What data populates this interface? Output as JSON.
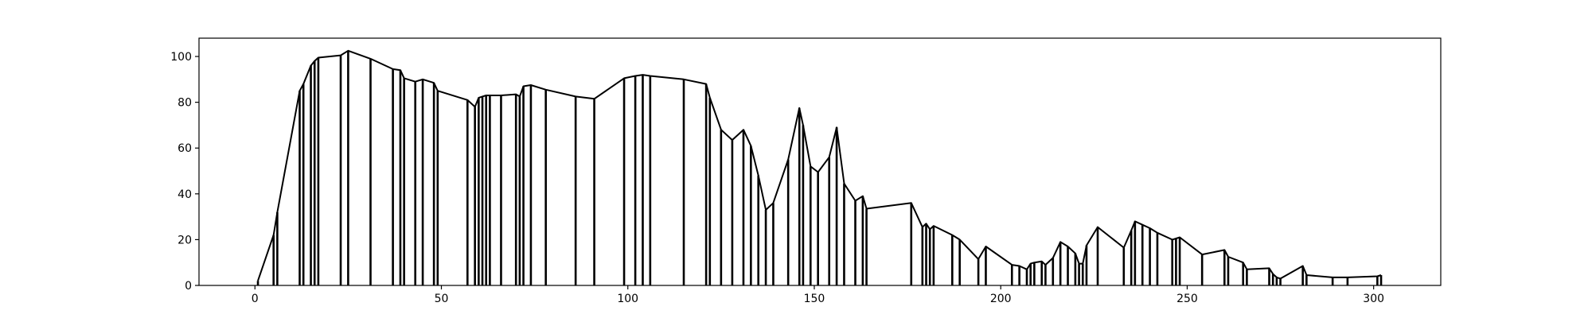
{
  "chart_data": {
    "type": "line",
    "title": "",
    "xlabel": "",
    "ylabel": "",
    "xlim": [
      -15,
      318
    ],
    "ylim": [
      0,
      108
    ],
    "x_ticks": [
      0,
      50,
      100,
      150,
      200,
      250,
      300
    ],
    "y_ticks": [
      0,
      20,
      40,
      60,
      80,
      100
    ],
    "grid": false,
    "legend": "none",
    "colors": {
      "line": "#000000",
      "frame": "#000000",
      "background": "#ffffff"
    },
    "series": [
      {
        "style": "line-with-vertical-drops",
        "x": [
          0.8,
          5,
          6,
          12,
          13,
          15,
          16,
          17,
          23,
          25,
          31,
          37,
          39,
          40,
          43,
          45,
          48,
          49,
          57,
          59,
          60,
          61,
          62,
          63,
          66,
          70,
          71,
          72,
          74,
          78,
          86,
          91,
          99,
          102,
          104,
          106,
          115,
          121,
          122,
          125,
          128,
          131,
          133,
          135,
          137,
          139,
          143,
          146,
          147,
          149,
          151,
          154,
          156,
          158,
          161,
          163,
          164,
          176,
          179,
          180,
          181,
          182,
          187,
          189,
          194,
          196,
          203,
          205,
          207,
          208,
          209,
          211,
          212,
          214,
          216,
          218,
          220,
          221,
          222,
          223,
          226,
          233,
          235,
          236,
          238,
          240,
          242,
          246,
          247,
          248,
          254,
          260,
          261,
          265,
          266,
          272,
          273,
          274,
          275,
          281,
          282,
          289,
          293,
          301,
          302
        ],
        "y": [
          2,
          22,
          32,
          85,
          88,
          96,
          98,
          99.5,
          100.5,
          102.5,
          99,
          94.5,
          94,
          90.5,
          89,
          90,
          88.5,
          85,
          81,
          78,
          82,
          82.5,
          83,
          83,
          83,
          83.5,
          82.5,
          87,
          87.5,
          85.5,
          82.5,
          81.5,
          90.5,
          91.5,
          92,
          91.5,
          90,
          88,
          82,
          68,
          63.5,
          68,
          61,
          48,
          33,
          36,
          55,
          77.5,
          70,
          52,
          49.5,
          56,
          69,
          44.5,
          37,
          39,
          33.5,
          36,
          25.5,
          27,
          24.5,
          26,
          22,
          20,
          11.5,
          17,
          9,
          8.5,
          7,
          9.5,
          10,
          10.5,
          9,
          12,
          19,
          17,
          14,
          9.5,
          9.5,
          17.5,
          25.5,
          16.5,
          24,
          28,
          26.5,
          25,
          23,
          20,
          20.5,
          21,
          13.5,
          15.5,
          12.5,
          10,
          7,
          7.5,
          5,
          3.5,
          3,
          8.5,
          4.5,
          3.5,
          3.5,
          4,
          4.5
        ]
      }
    ]
  }
}
